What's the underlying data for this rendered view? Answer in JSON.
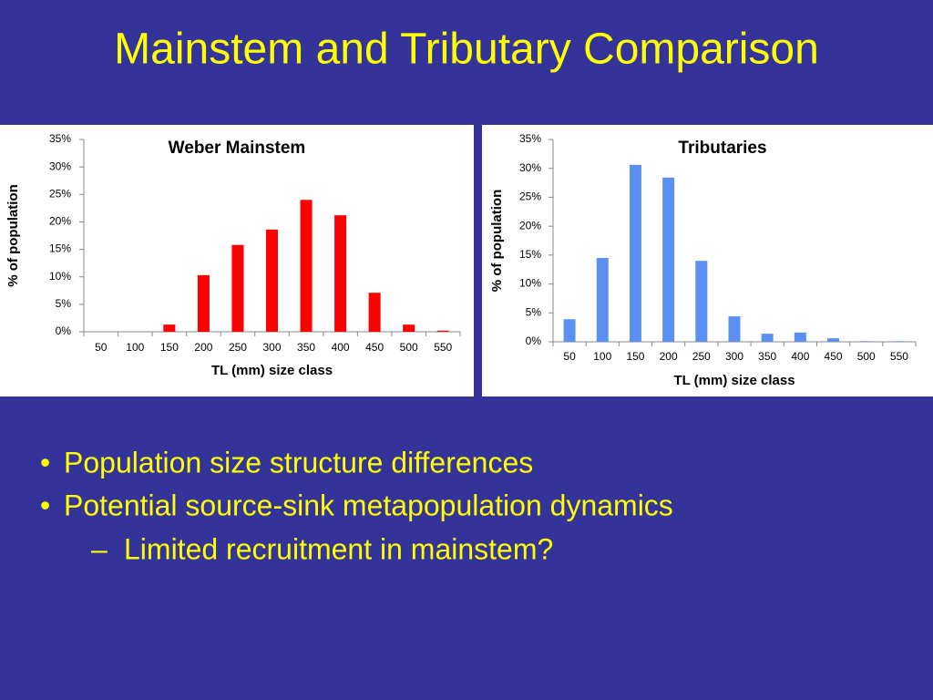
{
  "slide_title": "Mainstem and Tributary Comparison",
  "bullets": [
    {
      "marker": "•",
      "text": "Population size structure differences"
    },
    {
      "marker": "•",
      "text": "Potential source-sink metapopulation dynamics"
    },
    {
      "marker": "–",
      "text": "Limited recruitment in mainstem?"
    }
  ],
  "chart_data": [
    {
      "type": "bar",
      "title": "Weber Mainstem",
      "x_label": "TL (mm) size class",
      "y_label": "% of population",
      "categories": [
        "50",
        "100",
        "150",
        "200",
        "250",
        "300",
        "350",
        "400",
        "450",
        "500",
        "550"
      ],
      "values": [
        0,
        0,
        1.3,
        10.3,
        15.8,
        18.6,
        24.0,
        21.2,
        7.1,
        1.3,
        0.2
      ],
      "color": "#ff0000",
      "ylim": [
        0,
        35
      ],
      "yticks": [
        {
          "value": 0,
          "label": "0%"
        },
        {
          "value": 5,
          "label": "5%"
        },
        {
          "value": 10,
          "label": "10%"
        },
        {
          "value": 15,
          "label": "15%"
        },
        {
          "value": 20,
          "label": "20%"
        },
        {
          "value": 25,
          "label": "25%"
        },
        {
          "value": 30,
          "label": "30%"
        },
        {
          "value": 35,
          "label": "35%"
        }
      ],
      "grid": false
    },
    {
      "type": "bar",
      "title": "Tributaries",
      "x_label": "TL (mm) size class",
      "y_label": "% of population",
      "categories": [
        "50",
        "100",
        "150",
        "200",
        "250",
        "300",
        "350",
        "400",
        "450",
        "500",
        "550"
      ],
      "values": [
        3.9,
        14.5,
        30.6,
        28.4,
        14.0,
        4.4,
        1.4,
        1.6,
        0.6,
        0.1,
        0.1
      ],
      "color": "#5b8ff0",
      "ylim": [
        0,
        35
      ],
      "yticks": [
        {
          "value": 0,
          "label": "0%"
        },
        {
          "value": 5,
          "label": "5%"
        },
        {
          "value": 10,
          "label": "10%"
        },
        {
          "value": 15,
          "label": "15%"
        },
        {
          "value": 20,
          "label": "20%"
        },
        {
          "value": 25,
          "label": "25%"
        },
        {
          "value": 30,
          "label": "30%"
        },
        {
          "value": 35,
          "label": "35%"
        }
      ],
      "grid": false
    }
  ]
}
